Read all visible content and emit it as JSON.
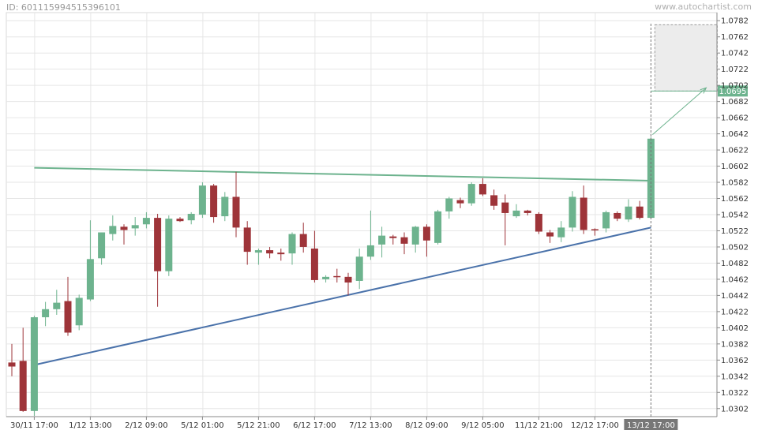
{
  "header": {
    "id_text": "ID: 601115994515396101",
    "watermark": "www.autochartist.com"
  },
  "chart_data": {
    "type": "candlestick",
    "title": "",
    "ylim": [
      1.0292,
      1.0792
    ],
    "y_ticks": [
      "1.0782",
      "1.0762",
      "1.0742",
      "1.0722",
      "1.0702",
      "1.0682",
      "1.0662",
      "1.0642",
      "1.0622",
      "1.0602",
      "1.0582",
      "1.0562",
      "1.0542",
      "1.0522",
      "1.0502",
      "1.0482",
      "1.0462",
      "1.0442",
      "1.0422",
      "1.0402",
      "1.0382",
      "1.0362",
      "1.0342",
      "1.0322",
      "1.0302"
    ],
    "x_ticks": [
      {
        "label": "30/11 17:00",
        "index": 2
      },
      {
        "label": "1/12 13:00",
        "index": 7
      },
      {
        "label": "2/12 09:00",
        "index": 12
      },
      {
        "label": "5/12 01:00",
        "index": 17
      },
      {
        "label": "5/12 21:00",
        "index": 22
      },
      {
        "label": "6/12 17:00",
        "index": 27
      },
      {
        "label": "7/12 13:00",
        "index": 32
      },
      {
        "label": "8/12 09:00",
        "index": 37
      },
      {
        "label": "9/12 05:00",
        "index": 42
      },
      {
        "label": "11/12 21:00",
        "index": 47
      },
      {
        "label": "12/12 17:00",
        "index": 52
      }
    ],
    "current_time_label": "13/12 17:00",
    "current_price_label": "1.0695",
    "candles": [
      {
        "o": 1.0359,
        "h": 1.0382,
        "l": 1.0342,
        "c": 1.0354
      },
      {
        "o": 1.0361,
        "h": 1.0402,
        "l": 1.0298,
        "c": 1.0299
      },
      {
        "o": 1.0299,
        "h": 1.0417,
        "l": 1.0293,
        "c": 1.0415
      },
      {
        "o": 1.0415,
        "h": 1.0434,
        "l": 1.0404,
        "c": 1.0425
      },
      {
        "o": 1.0425,
        "h": 1.0449,
        "l": 1.0418,
        "c": 1.0433
      },
      {
        "o": 1.0435,
        "h": 1.0465,
        "l": 1.0392,
        "c": 1.0396
      },
      {
        "o": 1.0405,
        "h": 1.0443,
        "l": 1.0399,
        "c": 1.0439
      },
      {
        "o": 1.0437,
        "h": 1.0535,
        "l": 1.0435,
        "c": 1.0487
      },
      {
        "o": 1.0488,
        "h": 1.052,
        "l": 1.048,
        "c": 1.052
      },
      {
        "o": 1.0518,
        "h": 1.0541,
        "l": 1.051,
        "c": 1.0528
      },
      {
        "o": 1.0527,
        "h": 1.053,
        "l": 1.0505,
        "c": 1.0523
      },
      {
        "o": 1.0525,
        "h": 1.0539,
        "l": 1.0516,
        "c": 1.0529
      },
      {
        "o": 1.053,
        "h": 1.0545,
        "l": 1.0525,
        "c": 1.0538
      },
      {
        "o": 1.0538,
        "h": 1.0543,
        "l": 1.0428,
        "c": 1.0472
      },
      {
        "o": 1.0472,
        "h": 1.0541,
        "l": 1.0466,
        "c": 1.0537
      },
      {
        "o": 1.0537,
        "h": 1.0539,
        "l": 1.0533,
        "c": 1.0534
      },
      {
        "o": 1.0535,
        "h": 1.0545,
        "l": 1.053,
        "c": 1.0543
      },
      {
        "o": 1.0542,
        "h": 1.0582,
        "l": 1.0538,
        "c": 1.0578
      },
      {
        "o": 1.0578,
        "h": 1.058,
        "l": 1.0532,
        "c": 1.0539
      },
      {
        "o": 1.054,
        "h": 1.057,
        "l": 1.0534,
        "c": 1.0564
      },
      {
        "o": 1.0564,
        "h": 1.0595,
        "l": 1.0514,
        "c": 1.0526
      },
      {
        "o": 1.0526,
        "h": 1.0534,
        "l": 1.048,
        "c": 1.0496
      },
      {
        "o": 1.0495,
        "h": 1.05,
        "l": 1.048,
        "c": 1.0498
      },
      {
        "o": 1.0498,
        "h": 1.0502,
        "l": 1.0488,
        "c": 1.0494
      },
      {
        "o": 1.0495,
        "h": 1.05,
        "l": 1.0485,
        "c": 1.0493
      },
      {
        "o": 1.0494,
        "h": 1.052,
        "l": 1.048,
        "c": 1.0518
      },
      {
        "o": 1.0518,
        "h": 1.0532,
        "l": 1.0495,
        "c": 1.0502
      },
      {
        "o": 1.05,
        "h": 1.0522,
        "l": 1.0458,
        "c": 1.0461
      },
      {
        "o": 1.0462,
        "h": 1.0467,
        "l": 1.0458,
        "c": 1.0465
      },
      {
        "o": 1.0466,
        "h": 1.0475,
        "l": 1.0458,
        "c": 1.0465
      },
      {
        "o": 1.0465,
        "h": 1.047,
        "l": 1.0442,
        "c": 1.0458
      },
      {
        "o": 1.046,
        "h": 1.05,
        "l": 1.045,
        "c": 1.049
      },
      {
        "o": 1.049,
        "h": 1.0547,
        "l": 1.0486,
        "c": 1.0504
      },
      {
        "o": 1.0505,
        "h": 1.0527,
        "l": 1.0489,
        "c": 1.0516
      },
      {
        "o": 1.0515,
        "h": 1.0517,
        "l": 1.0505,
        "c": 1.0513
      },
      {
        "o": 1.0514,
        "h": 1.052,
        "l": 1.0493,
        "c": 1.0506
      },
      {
        "o": 1.0505,
        "h": 1.0528,
        "l": 1.0495,
        "c": 1.0527
      },
      {
        "o": 1.0527,
        "h": 1.053,
        "l": 1.049,
        "c": 1.051
      },
      {
        "o": 1.0507,
        "h": 1.0548,
        "l": 1.0505,
        "c": 1.0546
      },
      {
        "o": 1.0546,
        "h": 1.0564,
        "l": 1.0537,
        "c": 1.0562
      },
      {
        "o": 1.056,
        "h": 1.0563,
        "l": 1.055,
        "c": 1.0556
      },
      {
        "o": 1.0556,
        "h": 1.0582,
        "l": 1.0553,
        "c": 1.058
      },
      {
        "o": 1.058,
        "h": 1.0587,
        "l": 1.0565,
        "c": 1.0567
      },
      {
        "o": 1.0566,
        "h": 1.0573,
        "l": 1.0548,
        "c": 1.0553
      },
      {
        "o": 1.0557,
        "h": 1.0567,
        "l": 1.0504,
        "c": 1.0544
      },
      {
        "o": 1.054,
        "h": 1.0555,
        "l": 1.0538,
        "c": 1.0547
      },
      {
        "o": 1.0547,
        "h": 1.0548,
        "l": 1.0541,
        "c": 1.0544
      },
      {
        "o": 1.0543,
        "h": 1.0545,
        "l": 1.0518,
        "c": 1.0521
      },
      {
        "o": 1.052,
        "h": 1.0523,
        "l": 1.0507,
        "c": 1.0515
      },
      {
        "o": 1.0514,
        "h": 1.0534,
        "l": 1.0508,
        "c": 1.0526
      },
      {
        "o": 1.0526,
        "h": 1.0571,
        "l": 1.0521,
        "c": 1.0564
      },
      {
        "o": 1.0563,
        "h": 1.0578,
        "l": 1.0518,
        "c": 1.0523
      },
      {
        "o": 1.0524,
        "h": 1.0525,
        "l": 1.0516,
        "c": 1.0523
      },
      {
        "o": 1.0525,
        "h": 1.0547,
        "l": 1.052,
        "c": 1.0545
      },
      {
        "o": 1.0544,
        "h": 1.0546,
        "l": 1.0534,
        "c": 1.0537
      },
      {
        "o": 1.0536,
        "h": 1.0561,
        "l": 1.0533,
        "c": 1.0552
      },
      {
        "o": 1.0552,
        "h": 1.0559,
        "l": 1.0536,
        "c": 1.0538
      },
      {
        "o": 1.0538,
        "h": 1.0638,
        "l": 1.0537,
        "c": 1.0636
      }
    ],
    "resistance_line": {
      "start_index": 2,
      "start_price": 1.06,
      "end_index": 57,
      "end_price": 1.0584,
      "color": "#6db38e"
    },
    "support_line": {
      "start_index": 2,
      "start_price": 1.0356,
      "end_index": 57,
      "end_price": 1.0526,
      "color": "#4a72aa"
    },
    "forecast": {
      "from_index": 57,
      "from_price": 1.0641,
      "to_price": 1.0699,
      "target_price": 1.0695
    },
    "target_zone": {
      "price_top": 1.0777,
      "price_bottom": 1.0695
    },
    "colors": {
      "up": "#6db38e",
      "down": "#9e3439",
      "grid": "#e6e6e6",
      "price_badge": "#6db38e",
      "time_badge": "#777777"
    }
  }
}
